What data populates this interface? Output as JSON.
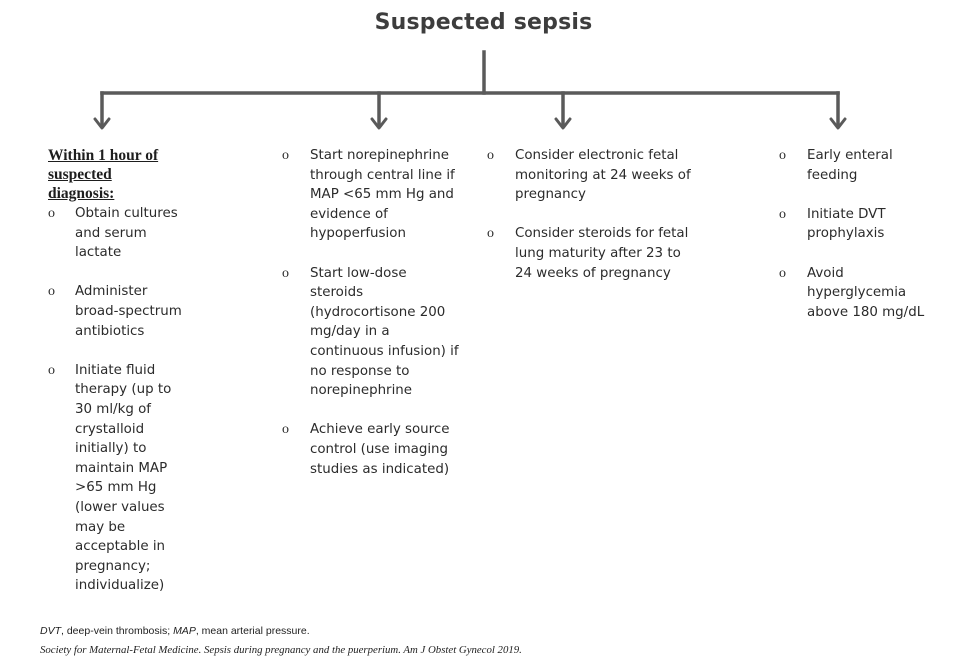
{
  "title": "Suspected sepsis",
  "columns": [
    {
      "heading": "Within 1 hour of suspected diagnosis:",
      "items": [
        "Obtain cultures and serum lactate",
        "Administer broad-spectrum antibiotics",
        "Initiate fluid therapy (up to 30 ml/kg of crystalloid initially) to maintain MAP >65 mm Hg (lower values may be acceptable in pregnancy; individualize)"
      ]
    },
    {
      "heading": "",
      "items": [
        "Start norepinephrine through central line if MAP <65 mm Hg and evidence of hypoperfusion",
        "Start low-dose steroids (hydrocortisone 200 mg/day in a continuous infusion) if no response to norepinephrine",
        "Achieve early source control (use imaging studies as indicated)"
      ]
    },
    {
      "heading": "",
      "items": [
        "Consider electronic fetal monitoring at 24 weeks of pregnancy",
        "Consider steroids for fetal lung maturity after 23 to 24 weeks of pregnancy"
      ]
    },
    {
      "heading": "",
      "items": [
        "Early enteral feeding",
        "Initiate DVT prophylaxis",
        "Avoid hyperglycemia above 180 mg/dL"
      ]
    }
  ],
  "bullet_symbol": "o",
  "footnote": {
    "abbr1": "DVT",
    "def1": ", deep-vein thrombosis; ",
    "abbr2": "MAP",
    "def2": ", mean arterial pressure."
  },
  "source": "Society for Maternal-Fetal Medicine. Sepsis during pregnancy and the puerperium. Am J Obstet Gynecol 2019.",
  "colors": {
    "connector": "#5a5a5a",
    "text": "#2b2b2b",
    "title": "#3d3d3d"
  }
}
